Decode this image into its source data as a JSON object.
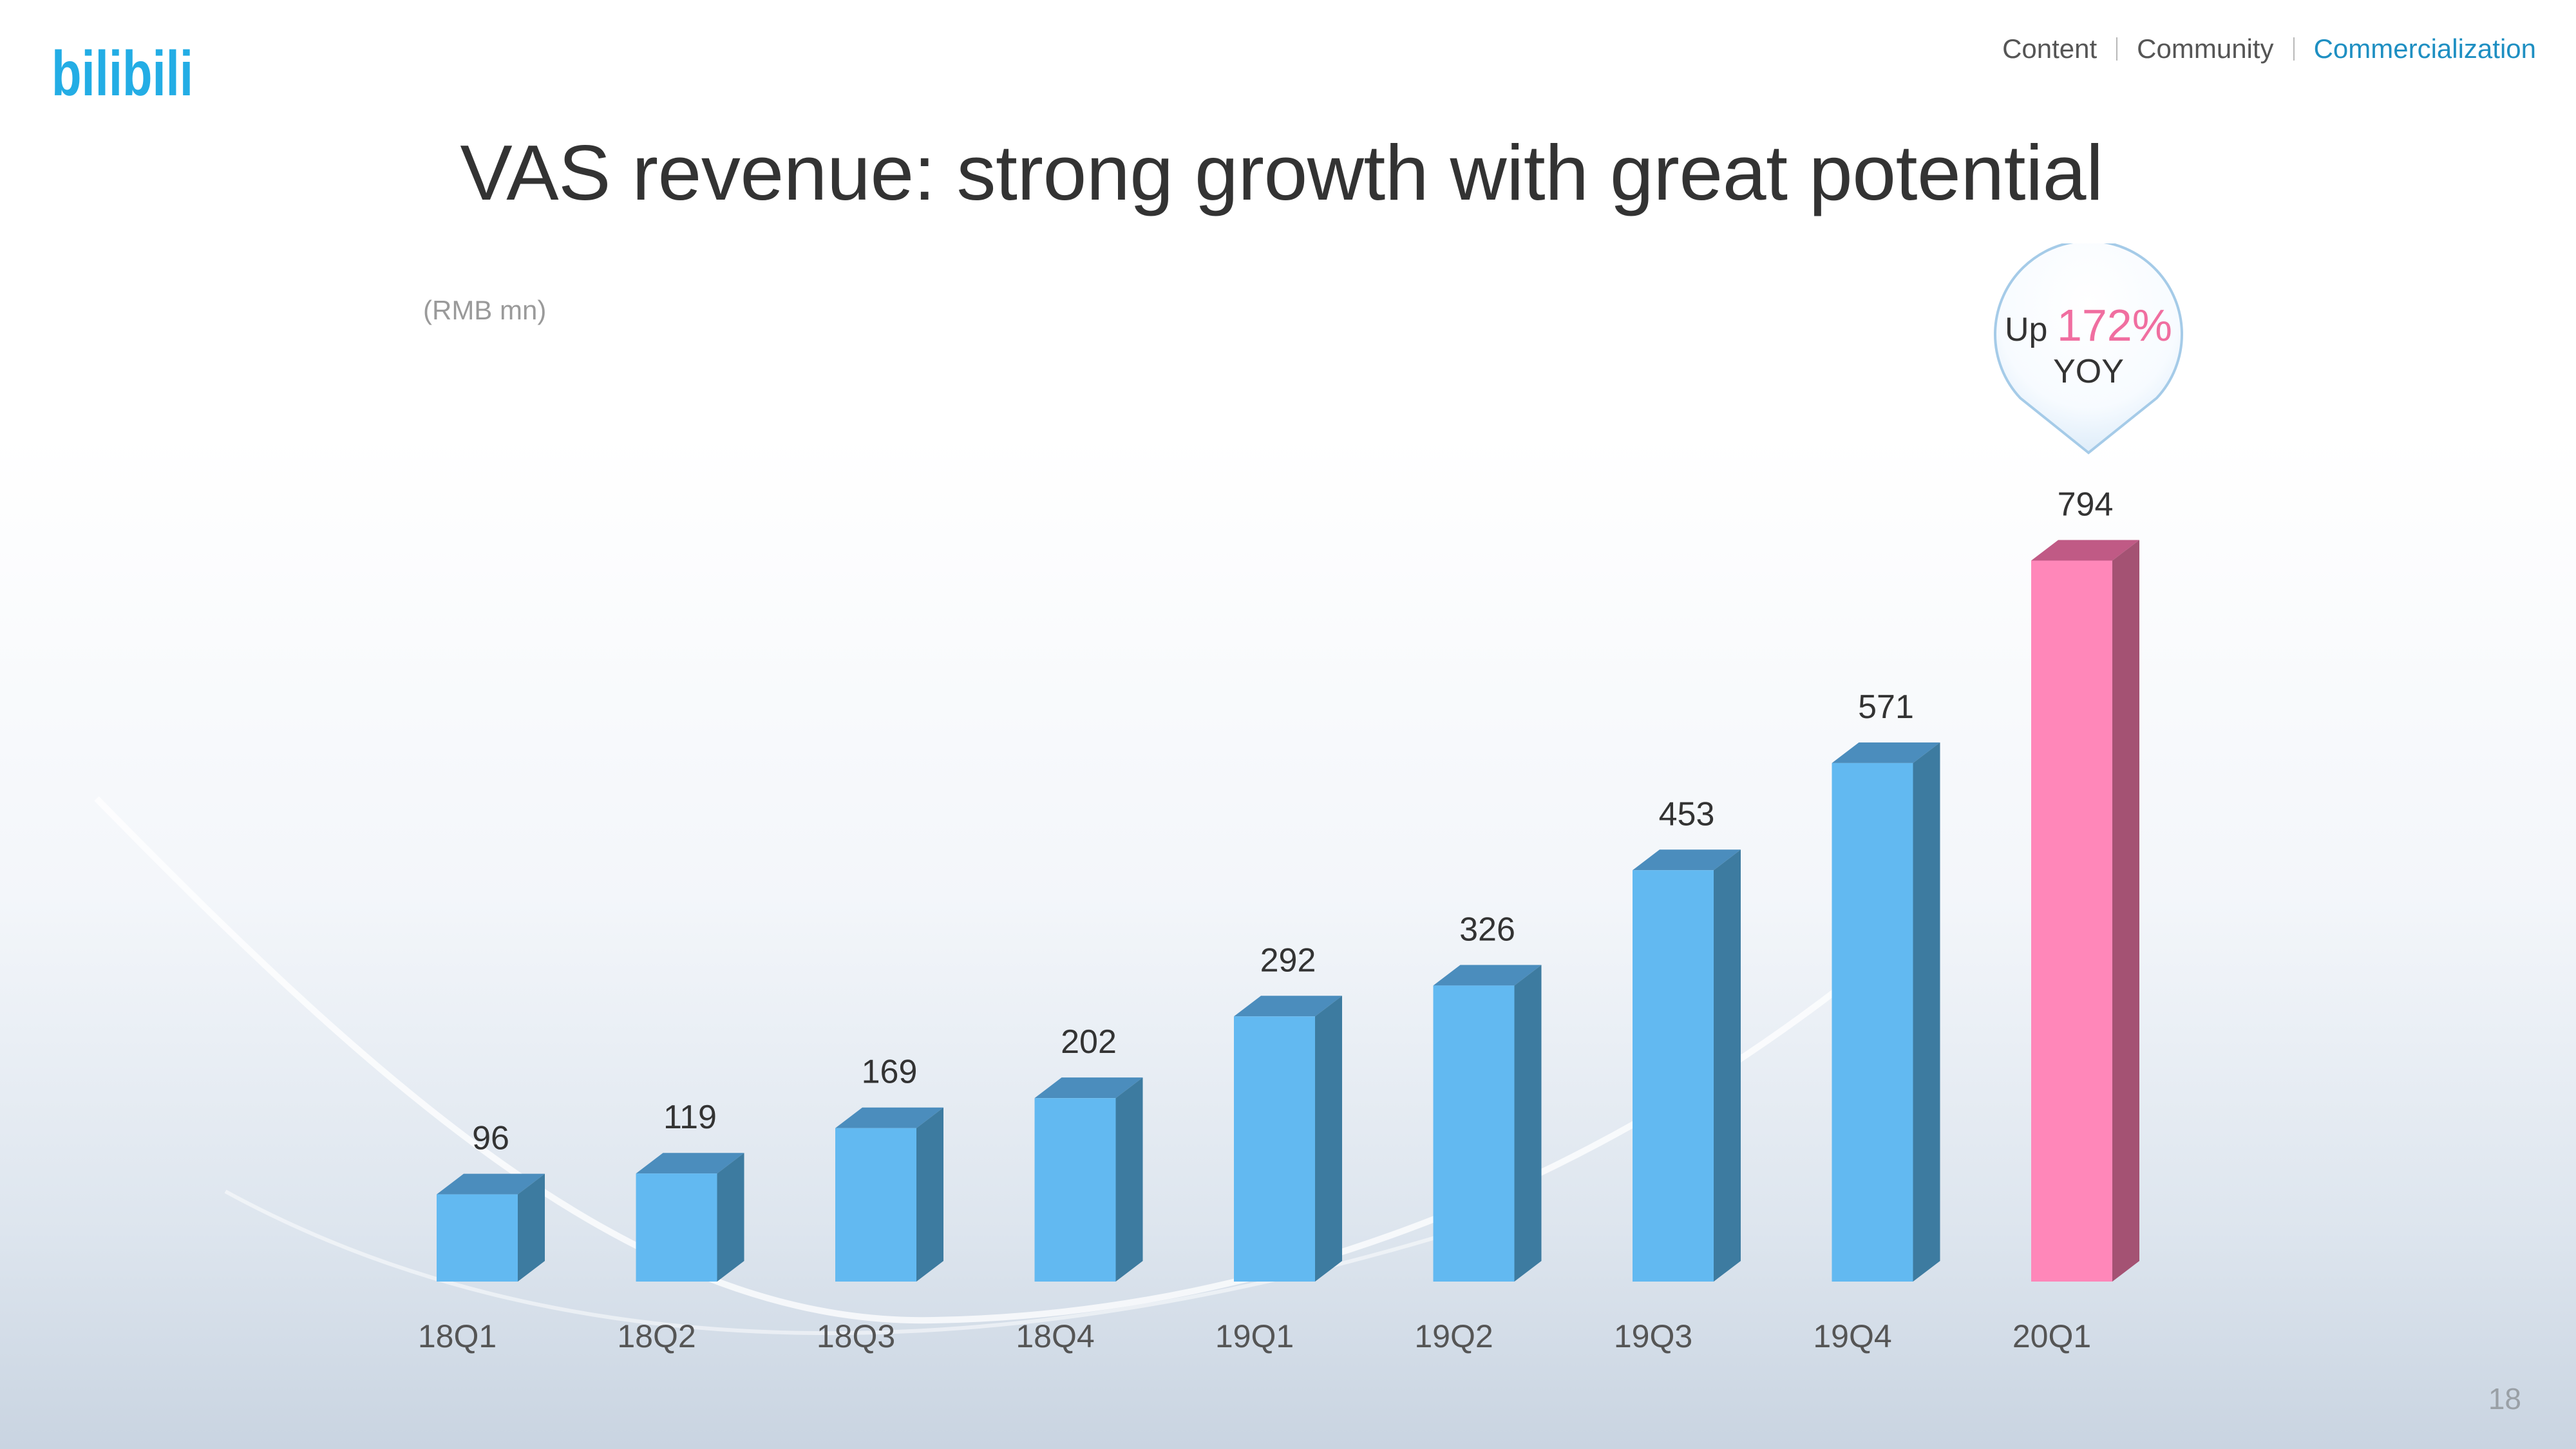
{
  "brand": {
    "logo_text": "bilibili",
    "accent_color": "#1e8fc2",
    "logo_color": "#23ade5"
  },
  "nav": {
    "items": [
      {
        "label": "Content",
        "active": false
      },
      {
        "label": "Community",
        "active": false
      },
      {
        "label": "Commercialization",
        "active": true
      }
    ]
  },
  "slide": {
    "title": "VAS revenue: strong growth with great potential",
    "unit_label": "(RMB mn)",
    "page_number": "18"
  },
  "callout": {
    "prefix": "Up",
    "value": "172%",
    "suffix": "YOY",
    "value_color": "#f06ea0"
  },
  "chart_data": {
    "type": "bar",
    "title": "VAS revenue: strong growth with great potential",
    "ylabel": "(RMB mn)",
    "categories": [
      "18Q1",
      "18Q2",
      "18Q3",
      "18Q4",
      "19Q1",
      "19Q2",
      "19Q3",
      "19Q4",
      "20Q1"
    ],
    "values": [
      96,
      119,
      169,
      202,
      292,
      326,
      453,
      571,
      794
    ],
    "highlight_index": 8,
    "colors": {
      "bar": "#62b9f1",
      "bar_side": "#3d7ba0",
      "bar_top": "#4b8dbd",
      "highlight": "#ff87b9",
      "highlight_side": "#a45273",
      "highlight_top": "#c05a85"
    },
    "data_labels": true,
    "grid": false,
    "legend": "none"
  }
}
